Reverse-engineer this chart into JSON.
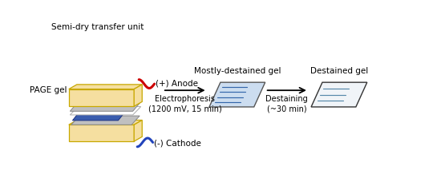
{
  "bg_color": "#ffffff",
  "yellow_color": "#F5DFA0",
  "yellow_edge": "#C8A800",
  "gray_color": "#C0C0C0",
  "gray_edge": "#888888",
  "white_color": "#FFFFFF",
  "white_edge": "#AAAAAA",
  "blue_gel_color": "#3A5DAE",
  "light_blue_color": "#CCDDF0",
  "light_blue_edge": "#6699BB",
  "dest_gel_color": "#F0F4F8",
  "dest_gel_edge": "#444444",
  "red_wire": "#CC0000",
  "blue_wire": "#2244BB",
  "text_color": "#000000",
  "label_semi_dry": "Semi-dry transfer unit",
  "label_page_gel": "PAGE gel",
  "label_anode": "(+) Anode",
  "label_cathode": "(-) Cathode",
  "label_electrophoresis": "Electrophoresis\n(1200 mV, 15 min)",
  "label_mostly_destained": "Mostly-destained gel",
  "label_destaining": "Destaining\n(~30 min)",
  "label_destained": "Destained gel",
  "figsize": [
    5.5,
    2.18
  ],
  "dpi": 100
}
